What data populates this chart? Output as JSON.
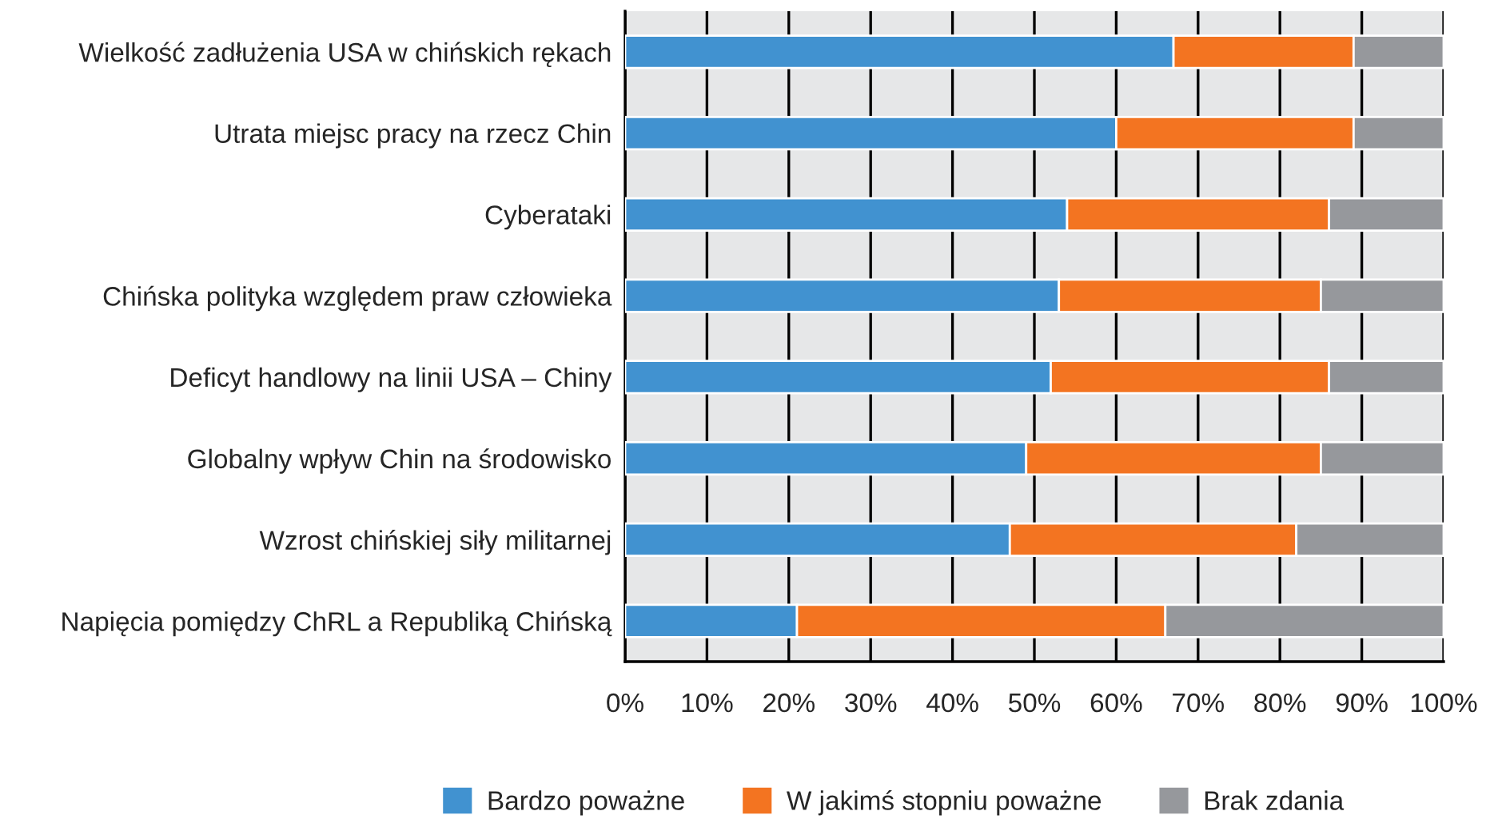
{
  "chart_data": {
    "type": "bar",
    "orientation": "horizontal",
    "stacked": true,
    "categories": [
      "Wielkość zadłużenia USA w chińskich rękach",
      "Utrata miejsc pracy na rzecz Chin",
      "Cyberataki",
      "Chińska polityka względem praw człowieka",
      "Deficyt handlowy na linii USA – Chiny",
      "Globalny wpływ Chin na środowisko",
      "Wzrost chińskiej siły militarnej",
      "Napięcia pomiędzy ChRL a Republiką Chińską"
    ],
    "series": [
      {
        "name": "Bardzo poważne",
        "color": "#4192d0",
        "values": [
          67,
          60,
          54,
          53,
          52,
          49,
          47,
          21
        ]
      },
      {
        "name": "W jakimś stopniu poważne",
        "color": "#f37421",
        "values": [
          22,
          29,
          32,
          32,
          34,
          36,
          35,
          45
        ]
      },
      {
        "name": "Brak zdania",
        "color": "#96989c",
        "values": [
          11,
          11,
          14,
          15,
          14,
          15,
          18,
          34
        ]
      }
    ],
    "xlim": [
      0,
      100
    ],
    "xticks": [
      {
        "value": 0,
        "label": "0%"
      },
      {
        "value": 10,
        "label": "10%"
      },
      {
        "value": 20,
        "label": "20%"
      },
      {
        "value": 30,
        "label": "30%"
      },
      {
        "value": 40,
        "label": "40%"
      },
      {
        "value": 50,
        "label": "50%"
      },
      {
        "value": 60,
        "label": "60%"
      },
      {
        "value": 70,
        "label": "70%"
      },
      {
        "value": 80,
        "label": "80%"
      },
      {
        "value": 90,
        "label": "90%"
      },
      {
        "value": 100,
        "label": "100%"
      }
    ],
    "grid": "x",
    "legend": "bottom"
  }
}
